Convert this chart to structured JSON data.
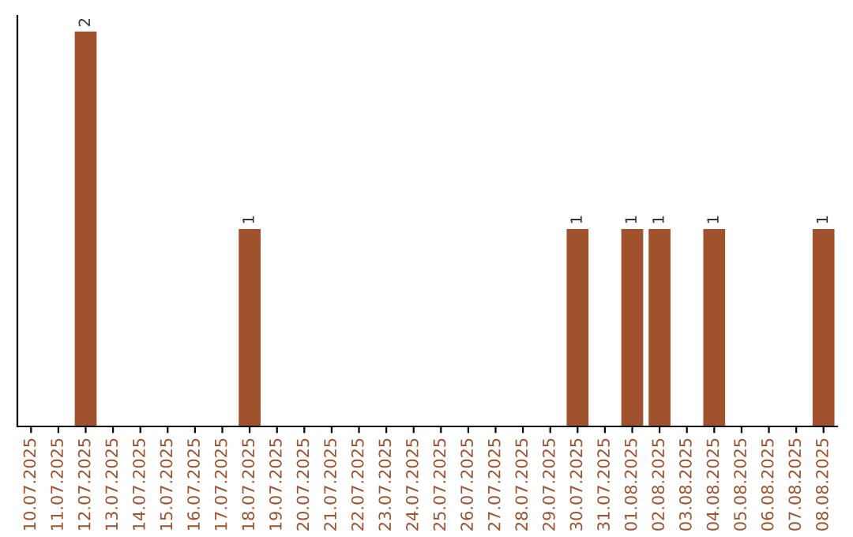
{
  "chart_data": {
    "type": "bar",
    "categories": [
      "10.07.2025",
      "11.07.2025",
      "12.07.2025",
      "13.07.2025",
      "14.07.2025",
      "15.07.2025",
      "16.07.2025",
      "17.07.2025",
      "18.07.2025",
      "19.07.2025",
      "20.07.2025",
      "21.07.2025",
      "22.07.2025",
      "23.07.2025",
      "24.07.2025",
      "25.07.2025",
      "26.07.2025",
      "27.07.2025",
      "28.07.2025",
      "29.07.2025",
      "30.07.2025",
      "31.07.2025",
      "01.08.2025",
      "02.08.2025",
      "03.08.2025",
      "04.08.2025",
      "05.08.2025",
      "06.08.2025",
      "07.08.2025",
      "08.08.2025"
    ],
    "values": [
      0,
      0,
      2,
      0,
      0,
      0,
      0,
      0,
      1,
      0,
      0,
      0,
      0,
      0,
      0,
      0,
      0,
      0,
      0,
      0,
      1,
      0,
      1,
      1,
      0,
      1,
      0,
      0,
      0,
      1
    ],
    "value_labels": [
      null,
      null,
      "2",
      null,
      null,
      null,
      null,
      null,
      "1",
      null,
      null,
      null,
      null,
      null,
      null,
      null,
      null,
      null,
      null,
      null,
      "1",
      null,
      "1",
      "1",
      null,
      "1",
      null,
      null,
      null,
      "1"
    ],
    "color": "#a0522d",
    "ylim": [
      0,
      2.08
    ],
    "tick_labels": "x",
    "grid": false
  }
}
